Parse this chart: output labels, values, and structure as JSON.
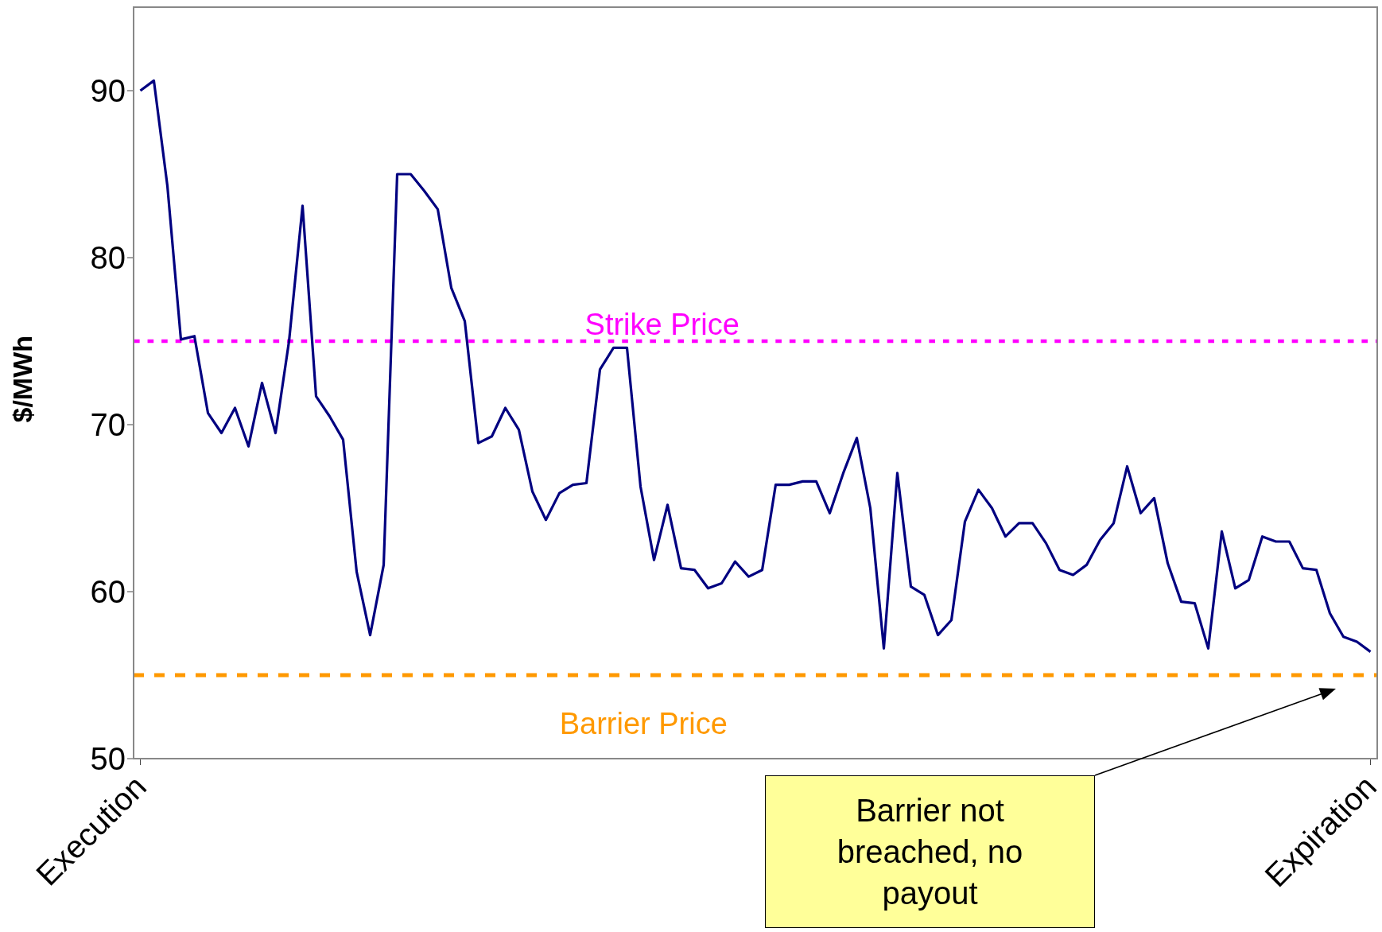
{
  "chart_data": {
    "type": "line",
    "ylabel": "$/MWh",
    "categories": [
      "Execution",
      null,
      null,
      null,
      null,
      null,
      null,
      null,
      null,
      null,
      null,
      null,
      null,
      null,
      null,
      null,
      null,
      null,
      null,
      null,
      null,
      null,
      null,
      null,
      null,
      null,
      null,
      null,
      null,
      null,
      null,
      null,
      null,
      null,
      null,
      null,
      null,
      null,
      null,
      null,
      null,
      null,
      null,
      null,
      null,
      null,
      null,
      null,
      null,
      null,
      null,
      null,
      null,
      null,
      null,
      null,
      null,
      null,
      null,
      null,
      null,
      null,
      null,
      null,
      null,
      null,
      null,
      null,
      null,
      null,
      null,
      null,
      null,
      null,
      null,
      null,
      null,
      null,
      null,
      null,
      null,
      null,
      null,
      null,
      null,
      null,
      null,
      null,
      null,
      null,
      null,
      "Expiration"
    ],
    "series": [
      {
        "color": "#000080",
        "values": [
          90,
          90.6,
          84.3,
          75.1,
          75.3,
          70.7,
          69.5,
          71,
          68.7,
          72.5,
          69.5,
          75,
          83.1,
          71.7,
          70.5,
          69.1,
          61.2,
          57.4,
          61.6,
          85,
          85,
          84,
          82.9,
          78.2,
          76.2,
          68.9,
          69.3,
          71,
          69.7,
          66,
          64.3,
          65.9,
          66.4,
          66.5,
          73.3,
          74.6,
          74.6,
          66.3,
          61.9,
          65.2,
          61.4,
          61.3,
          60.2,
          60.5,
          61.8,
          60.9,
          61.3,
          66.4,
          66.4,
          66.6,
          66.6,
          64.7,
          67.1,
          69.2,
          65,
          56.6,
          67.1,
          60.3,
          59.8,
          57.4,
          58.3,
          64.2,
          66.1,
          65,
          63.3,
          64.1,
          64.1,
          62.9,
          61.3,
          61,
          61.6,
          63.1,
          64.1,
          67.5,
          64.7,
          65.6,
          61.7,
          59.4,
          59.3,
          56.6,
          63.6,
          60.2,
          60.7,
          63.3,
          63,
          63,
          61.4,
          61.3,
          58.7,
          57.3,
          57,
          56.4
        ]
      }
    ],
    "ylim": [
      50,
      95
    ],
    "yticks": [
      50,
      60,
      70,
      80,
      90
    ],
    "ref_lines": [
      {
        "axis": "y",
        "value": 75,
        "label": "Strike Price",
        "color": "#ff00ff",
        "line_style": "dotted"
      },
      {
        "axis": "y",
        "value": 55,
        "label": "Barrier Price",
        "color": "#ff9900",
        "line_style": "dashed"
      }
    ],
    "annotations": [
      "Barrier not breached, no payout"
    ],
    "grid": false,
    "legend": false,
    "marker": "none",
    "line_style": "solid"
  }
}
